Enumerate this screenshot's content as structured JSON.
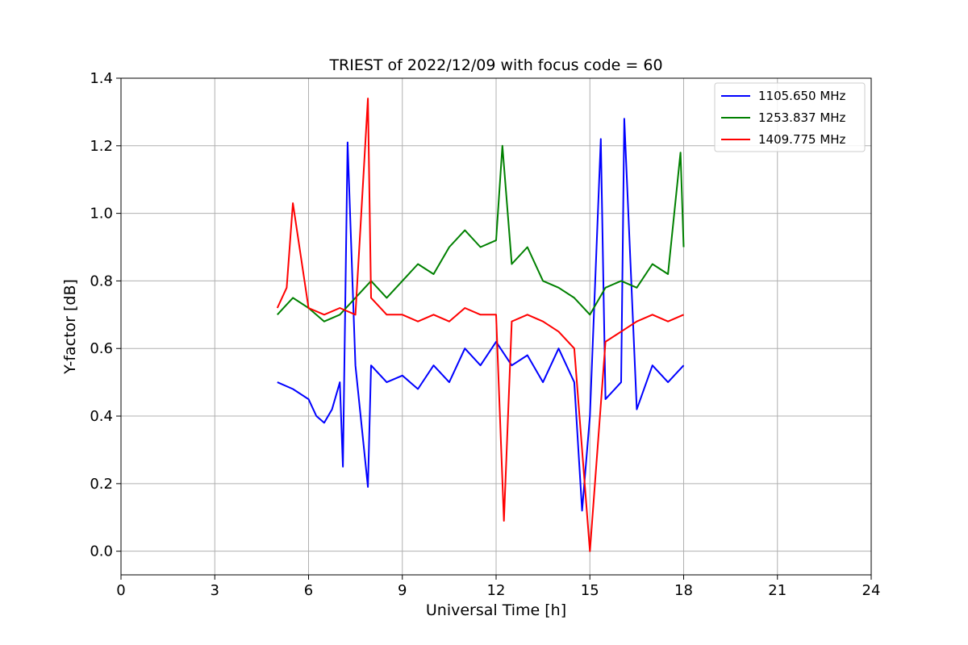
{
  "chart_data": {
    "type": "line",
    "title": "TRIEST of 2022/12/09 with focus code = 60",
    "xlabel": "Universal Time [h]",
    "ylabel": "Y-factor [dB]",
    "xlim": [
      0,
      24
    ],
    "ylim": [
      -0.07,
      1.4
    ],
    "xticks": [
      0,
      3,
      6,
      9,
      12,
      15,
      18,
      21,
      24
    ],
    "yticks": [
      0.0,
      0.2,
      0.4,
      0.6,
      0.8,
      1.0,
      1.2,
      1.4
    ],
    "xtick_labels": [
      "0",
      "3",
      "6",
      "9",
      "12",
      "15",
      "18",
      "21",
      "24"
    ],
    "ytick_labels": [
      "0.0",
      "0.2",
      "0.4",
      "0.6",
      "0.8",
      "1.0",
      "1.2",
      "1.4"
    ],
    "grid": true,
    "legend_position": "top-right",
    "series": [
      {
        "name": "1105.650 MHz",
        "color": "#0000ff",
        "x": [
          5.0,
          5.5,
          6.0,
          6.25,
          6.5,
          6.75,
          7.0,
          7.1,
          7.25,
          7.5,
          7.9,
          8.0,
          8.5,
          9.0,
          9.5,
          10.0,
          10.5,
          11.0,
          11.5,
          12.0,
          12.5,
          13.0,
          13.5,
          14.0,
          14.5,
          14.75,
          15.0,
          15.35,
          15.5,
          16.0,
          16.1,
          16.5,
          17.0,
          17.5,
          18.0
        ],
        "y": [
          0.5,
          0.48,
          0.45,
          0.4,
          0.38,
          0.42,
          0.5,
          0.25,
          1.21,
          0.55,
          0.19,
          0.55,
          0.5,
          0.52,
          0.48,
          0.55,
          0.5,
          0.6,
          0.55,
          0.62,
          0.55,
          0.58,
          0.5,
          0.6,
          0.5,
          0.12,
          0.4,
          1.22,
          0.45,
          0.5,
          1.28,
          0.42,
          0.55,
          0.5,
          0.55
        ]
      },
      {
        "name": "1253.837 MHz",
        "color": "#008000",
        "x": [
          5.0,
          5.5,
          6.0,
          6.5,
          7.0,
          7.5,
          8.0,
          8.5,
          9.0,
          9.5,
          10.0,
          10.5,
          11.0,
          11.5,
          12.0,
          12.2,
          12.5,
          13.0,
          13.5,
          14.0,
          14.5,
          15.0,
          15.5,
          16.0,
          16.5,
          17.0,
          17.5,
          17.9,
          18.0
        ],
        "y": [
          0.7,
          0.75,
          0.72,
          0.68,
          0.7,
          0.75,
          0.8,
          0.75,
          0.8,
          0.85,
          0.82,
          0.9,
          0.95,
          0.9,
          0.92,
          1.2,
          0.85,
          0.9,
          0.8,
          0.78,
          0.75,
          0.7,
          0.78,
          0.8,
          0.78,
          0.85,
          0.82,
          1.18,
          0.9
        ]
      },
      {
        "name": "1409.775 MHz",
        "color": "#ff0000",
        "x": [
          5.0,
          5.3,
          5.5,
          6.0,
          6.5,
          7.0,
          7.5,
          7.9,
          8.0,
          8.5,
          9.0,
          9.5,
          10.0,
          10.5,
          11.0,
          11.5,
          12.0,
          12.25,
          12.5,
          13.0,
          13.5,
          14.0,
          14.5,
          15.0,
          15.5,
          16.0,
          16.5,
          17.0,
          17.5,
          18.0
        ],
        "y": [
          0.72,
          0.78,
          1.03,
          0.72,
          0.7,
          0.72,
          0.7,
          1.34,
          0.75,
          0.7,
          0.7,
          0.68,
          0.7,
          0.68,
          0.72,
          0.7,
          0.7,
          0.09,
          0.68,
          0.7,
          0.68,
          0.65,
          0.6,
          0.0,
          0.62,
          0.65,
          0.68,
          0.7,
          0.68,
          0.7
        ]
      }
    ]
  }
}
